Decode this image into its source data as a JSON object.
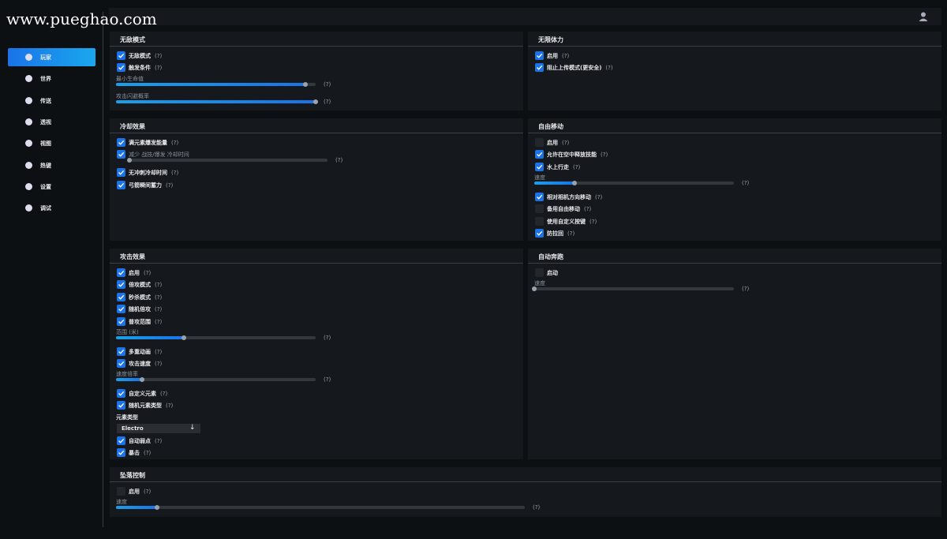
{
  "watermark": "www.pueghao.com",
  "sidebar": [
    "玩家",
    "世界",
    "传送",
    "透视",
    "视图",
    "热键",
    "设置",
    "调试"
  ],
  "active": 0,
  "panels": [
    {
      "title": "无敌模式",
      "items": [
        {
          "kind": "check",
          "label": "无敌模式",
          "checked": true,
          "hint": "(?)"
        },
        {
          "kind": "check",
          "label": "触发条件",
          "checked": true,
          "hint": "(?)"
        },
        {
          "kind": "slider",
          "label": "最小生命值",
          "value": 95,
          "hint": "(?)"
        },
        {
          "kind": "slider",
          "label": "攻击闪避概率",
          "value": 100,
          "hint": "(?)"
        }
      ]
    },
    {
      "title": "无限体力",
      "items": [
        {
          "kind": "check",
          "label": "启用",
          "checked": true,
          "hint": "(?)"
        },
        {
          "kind": "check",
          "label": "阻止上传模式(更安全)",
          "checked": true,
          "hint": "(?)"
        }
      ]
    },
    {
      "title": "冷却效果",
      "items": [
        {
          "kind": "check",
          "label": "满元素爆发能量",
          "checked": true,
          "hint": "(?)"
        },
        {
          "kind": "check-slider",
          "label": "减少 战技/爆发 冷却时间",
          "checked": true,
          "value": 0,
          "hint": "(?)"
        },
        {
          "kind": "check",
          "label": "无冲刺冷却时间",
          "checked": true,
          "hint": "(?)"
        },
        {
          "kind": "check",
          "label": "弓箭瞬间蓄力",
          "checked": true,
          "hint": "(?)"
        }
      ]
    },
    {
      "title": "自由移动",
      "items": [
        {
          "kind": "check",
          "label": "启用",
          "checked": false,
          "hint": "(?)"
        },
        {
          "kind": "check",
          "label": "允许在空中释放技能",
          "checked": true,
          "hint": "(?)"
        },
        {
          "kind": "check",
          "label": "水上行走",
          "checked": true,
          "hint": "(?)"
        },
        {
          "kind": "slider",
          "label": "速度",
          "value": 20,
          "hint": "(?)"
        },
        {
          "kind": "check",
          "label": "相对相机方向移动",
          "checked": true,
          "hint": "(?)"
        },
        {
          "kind": "check",
          "label": "备用自由移动",
          "checked": false,
          "hint": "(?)"
        },
        {
          "kind": "check",
          "label": "使用自定义按键",
          "checked": false,
          "hint": "(?)"
        },
        {
          "kind": "check",
          "label": "防拉回",
          "checked": true,
          "hint": "(?)"
        }
      ]
    },
    {
      "title": "攻击效果",
      "items": [
        {
          "kind": "check",
          "label": "启用",
          "checked": true,
          "hint": "(?)"
        },
        {
          "kind": "check",
          "label": "倍攻模式",
          "checked": true,
          "hint": "(?)"
        },
        {
          "kind": "check",
          "label": "秒杀模式",
          "checked": true,
          "hint": "(?)"
        },
        {
          "kind": "check",
          "label": "随机倍攻",
          "checked": true,
          "hint": "(?)"
        },
        {
          "kind": "check",
          "label": "普攻范围",
          "checked": true,
          "hint": "(?)"
        },
        {
          "kind": "slider",
          "label": "范围 (米)",
          "value": 34,
          "hint": "(?)"
        },
        {
          "kind": "check",
          "label": "多重动画",
          "checked": true,
          "hint": "(?)"
        },
        {
          "kind": "check",
          "label": "攻击速度",
          "checked": true,
          "hint": "(?)"
        },
        {
          "kind": "slider",
          "label": "速度倍率",
          "value": 13,
          "hint": "(?)"
        },
        {
          "kind": "check",
          "label": "自定义元素",
          "checked": true,
          "hint": "(?)"
        },
        {
          "kind": "check",
          "label": "随机元素类型",
          "checked": true,
          "hint": "(?)"
        },
        {
          "kind": "label",
          "label": "元素类型"
        },
        {
          "kind": "dropdown",
          "label": "Electro"
        },
        {
          "kind": "check",
          "label": "自动弱点",
          "checked": true,
          "hint": "(?)"
        },
        {
          "kind": "check",
          "label": "暴击",
          "checked": true,
          "hint": "(?)"
        }
      ]
    },
    {
      "title": "自动奔跑",
      "items": [
        {
          "kind": "check",
          "label": "启动",
          "checked": false
        },
        {
          "kind": "slider",
          "label": "速度",
          "value": 0,
          "hint": "(?)"
        }
      ]
    },
    {
      "title": "坠落控制",
      "items": [
        {
          "kind": "check",
          "label": "启用",
          "checked": false,
          "hint": "(?)"
        },
        {
          "kind": "slider",
          "label": "速度",
          "value": 10,
          "hint": "(?)"
        }
      ]
    }
  ]
}
